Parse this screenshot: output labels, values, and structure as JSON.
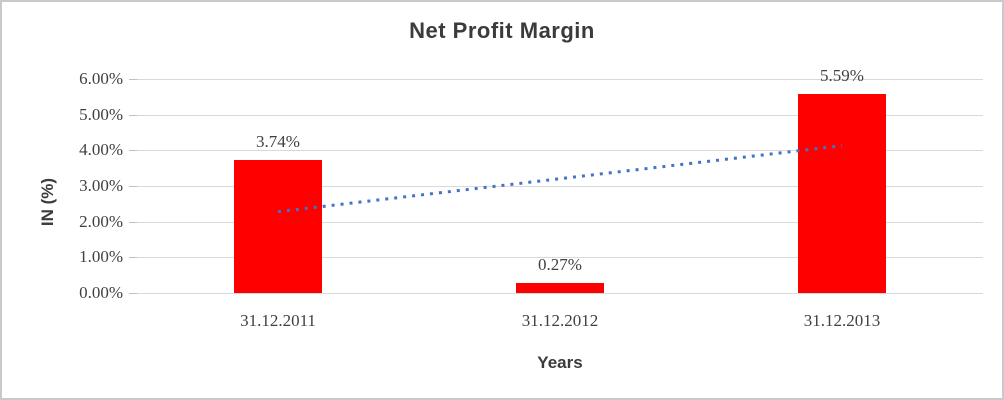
{
  "chart_data": {
    "type": "bar",
    "title": "Net Profit Margin",
    "categories": [
      "31.12.2011",
      "31.12.2012",
      "31.12.2013"
    ],
    "values": [
      3.74,
      0.27,
      5.59
    ],
    "data_labels": [
      "3.74%",
      "0.27%",
      "5.59%"
    ],
    "xlabel": "Years",
    "ylabel": "IN (%)",
    "ylim": [
      0,
      6
    ],
    "ytick_step": 1,
    "ytick_labels": [
      "0.00%",
      "1.00%",
      "2.00%",
      "3.00%",
      "4.00%",
      "5.00%",
      "6.00%"
    ],
    "grid": true,
    "legend": "none",
    "bar_color": "#FF0000",
    "trendline": {
      "type": "linear",
      "style": "dotted",
      "color": "#4472C4",
      "start_value": 2.28,
      "end_value": 4.13
    },
    "colors": {
      "text": "#404040",
      "title_text": "#3B3B3B",
      "gridline": "#D9D9D9",
      "axis_tick": "#BFBFBF",
      "background": "#FFFFFF",
      "border": "#C9C9C9"
    }
  }
}
